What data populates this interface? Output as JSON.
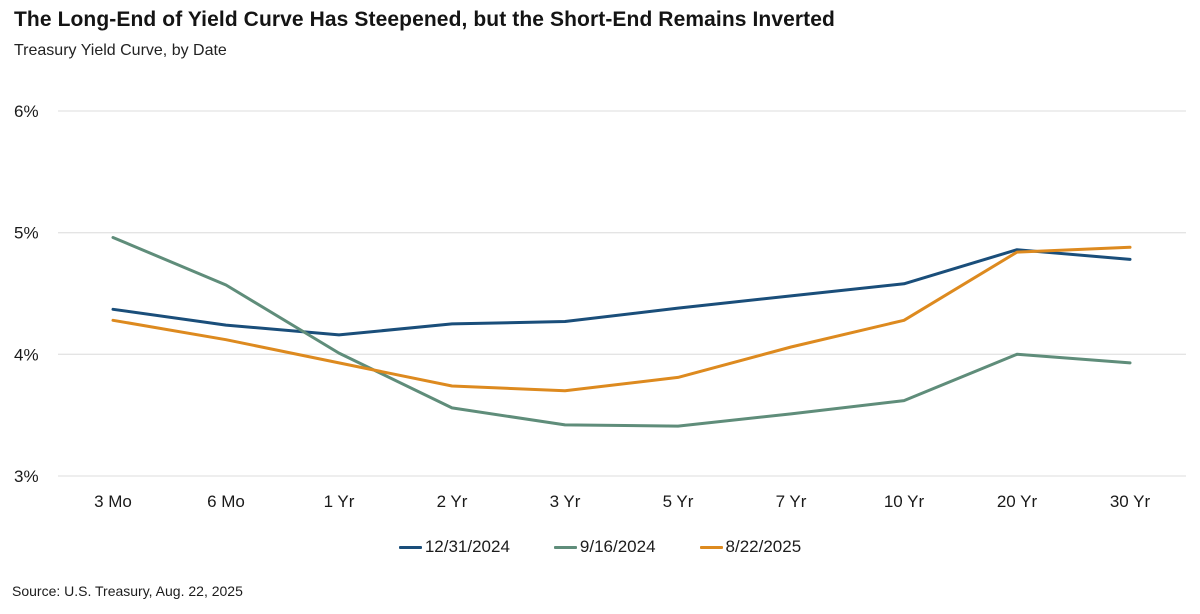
{
  "header": {
    "title": "The Long-End of Yield Curve Has Steepened, but the Short-End Remains Inverted",
    "subtitle": "Treasury Yield Curve, by Date"
  },
  "footer": {
    "source": "Source: U.S. Treasury, Aug. 22, 2025"
  },
  "colors": {
    "gridline": "#e4e4e4",
    "axis_text": "#1a1a1a",
    "series_blue": "#1a4e7a",
    "series_green": "#5f8d7a",
    "series_orange": "#dd8a1f"
  },
  "chart_data": {
    "type": "line",
    "title": "The Long-End of Yield Curve Has Steepened, but the Short-End Remains Inverted",
    "subtitle": "Treasury Yield Curve, by Date",
    "xlabel": "",
    "ylabel": "",
    "ylim": [
      3,
      6
    ],
    "grid": "horizontal",
    "legend_position": "bottom-center",
    "y_ticks": [
      {
        "value": 6,
        "label": "6%"
      },
      {
        "value": 5,
        "label": "5%"
      },
      {
        "value": 4,
        "label": "4%"
      },
      {
        "value": 3,
        "label": "3%"
      }
    ],
    "categories": [
      "3 Mo",
      "6 Mo",
      "1 Yr",
      "2 Yr",
      "3 Yr",
      "5 Yr",
      "7 Yr",
      "10 Yr",
      "20 Yr",
      "30 Yr"
    ],
    "series": [
      {
        "name": "12/31/2024",
        "color": "#1a4e7a",
        "values": [
          4.37,
          4.24,
          4.16,
          4.25,
          4.27,
          4.38,
          4.48,
          4.58,
          4.86,
          4.78
        ]
      },
      {
        "name": "9/16/2024",
        "color": "#5f8d7a",
        "values": [
          4.96,
          4.57,
          4.01,
          3.56,
          3.42,
          3.41,
          3.51,
          3.62,
          4.0,
          3.93
        ]
      },
      {
        "name": "8/22/2025",
        "color": "#dd8a1f",
        "values": [
          4.28,
          4.12,
          3.93,
          3.74,
          3.7,
          3.81,
          4.06,
          4.28,
          4.84,
          4.88
        ]
      }
    ]
  }
}
